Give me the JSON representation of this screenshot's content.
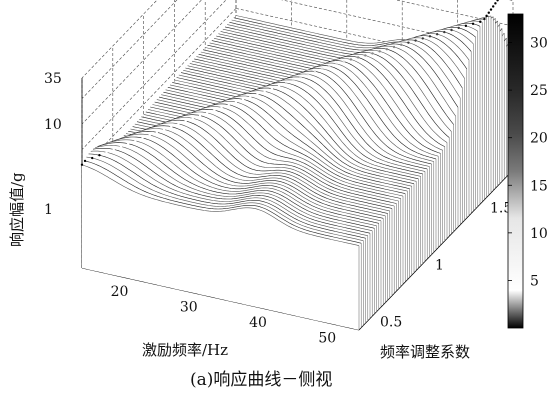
{
  "chart_data": {
    "type": "surface",
    "title": "",
    "caption": "(a)响应曲线－侧视",
    "zlabel": "响应幅值/g",
    "xlabel": "激励频率/Hz",
    "ylabel": "频率调整系数",
    "x_ticks": [
      "20",
      "30",
      "40",
      "50"
    ],
    "y_ticks": [
      "0.5",
      "1",
      "1.5"
    ],
    "z_ticks": [
      "1",
      "10",
      "35"
    ],
    "z_scale": "log",
    "xlim": [
      15,
      55
    ],
    "ylim": [
      0.4,
      1.8
    ],
    "zlim": [
      0.2,
      35
    ],
    "colorbar": {
      "colormap": "gray-reversed",
      "ticks": [
        "5",
        "10",
        "15",
        "20",
        "25",
        "30"
      ],
      "range": [
        0,
        33
      ]
    },
    "grid": true,
    "peak": {
      "x": 44,
      "y": 1.72,
      "z": 34
    }
  }
}
